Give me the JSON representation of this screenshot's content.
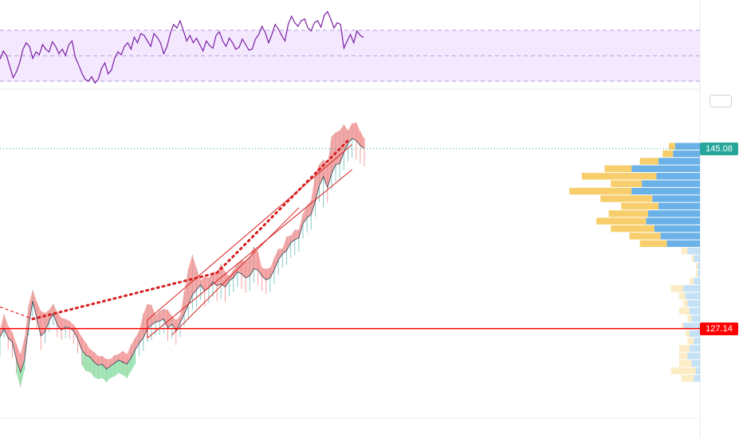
{
  "chart_data": [
    {
      "type": "line",
      "panel": "oscillator",
      "ylim": [
        0,
        100
      ],
      "bands": {
        "upper": 70,
        "middle": 50,
        "lower": 30
      },
      "line_color": "#7b1fa2",
      "band_fill": "#f3e5ff",
      "series": [
        {
          "values": [
            44,
            53,
            48,
            36,
            24,
            30,
            40,
            55,
            62,
            58,
            45,
            52,
            49,
            60,
            55,
            52,
            63,
            58,
            50,
            55,
            48,
            60,
            64,
            46,
            38,
            29,
            22,
            20,
            25,
            18,
            22,
            34,
            40,
            28,
            32,
            45,
            52,
            49,
            58,
            62,
            55,
            68,
            62,
            72,
            70,
            64,
            58,
            72,
            68,
            62,
            50,
            58,
            72,
            82,
            78,
            86,
            75,
            64,
            70,
            62,
            67,
            60,
            53,
            64,
            59,
            56,
            70,
            74,
            64,
            58,
            67,
            62,
            55,
            57,
            66,
            60,
            54,
            55,
            66,
            71,
            80,
            73,
            62,
            71,
            82,
            77,
            70,
            64,
            82,
            91,
            84,
            80,
            86,
            88,
            78,
            75,
            84,
            86,
            79,
            92,
            96,
            88,
            78,
            84,
            82,
            56,
            64,
            71,
            62,
            75,
            70,
            68
          ]
        }
      ]
    },
    {
      "type": "line",
      "panel": "price",
      "ylim": [
        120.2,
        148.0
      ],
      "series": [
        {
          "values": [
            126.3,
            127.1,
            126.2,
            125.8,
            124.1,
            122.8,
            124.0,
            127.4,
            129.9,
            128.2,
            126.4,
            126.8,
            127.9,
            128.6,
            127.5,
            127.0,
            127.3,
            127.2,
            126.9,
            126.1,
            125.0,
            124.5,
            124.3,
            123.8,
            123.5,
            123.6,
            123.1,
            123.4,
            123.7,
            124.0,
            123.8,
            123.6,
            124.2,
            125.0,
            125.7,
            126.2,
            127.1,
            127.5,
            127.8,
            127.9,
            128.1,
            127.2,
            127.6,
            126.9,
            127.7,
            128.6,
            129.5,
            130.5,
            131.0,
            131.5,
            130.9,
            131.2,
            131.8,
            131.4,
            131.6,
            131.3,
            131.9,
            132.2,
            132.8,
            132.6,
            132.2,
            132.4,
            133.1,
            133.0,
            132.4,
            132.0,
            132.2,
            133.0,
            134.0,
            134.6,
            134.9,
            135.7,
            136.0,
            136.2,
            137.6,
            138.2,
            138.5,
            139.8,
            141.4,
            142.3,
            141.2,
            142.6,
            143.5,
            143.6,
            144.7,
            145.6,
            146.1,
            145.9,
            145.4,
            145.1
          ]
        }
      ],
      "highs": [
        127.0,
        128.6,
        127.4,
        126.8,
        125.6,
        124.6,
        126.2,
        129.5,
        131.0,
        129.8,
        128.9,
        128.7,
        129.0,
        129.6,
        128.8,
        128.2,
        128.1,
        127.9,
        127.5,
        127.0,
        126.3,
        125.7,
        125.1,
        124.8,
        124.4,
        124.4,
        124.1,
        124.1,
        124.5,
        124.6,
        124.9,
        124.6,
        125.5,
        126.2,
        126.9,
        128.6,
        129.6,
        129.5,
        128.5,
        128.9,
        129.1,
        129.0,
        128.4,
        128.0,
        128.4,
        130.8,
        133.1,
        134.5,
        133.2,
        132.0,
        132.3,
        132.2,
        132.8,
        132.8,
        133.6,
        132.8,
        132.4,
        133.0,
        133.6,
        133.9,
        133.9,
        134.3,
        135.3,
        134.8,
        133.2,
        133.1,
        133.2,
        134.2,
        135.1,
        135.1,
        136.3,
        136.4,
        137.0,
        137.0,
        138.6,
        139.4,
        139.9,
        142.6,
        143.5,
        144.0,
        143.5,
        146.3,
        146.7,
        146.9,
        147.5,
        146.9,
        147.6,
        147.7,
        146.8,
        146.1
      ],
      "lows": [
        124.4,
        126.2,
        125.1,
        124.2,
        122.7,
        121.3,
        123.0,
        126.4,
        128.3,
        127.0,
        125.0,
        125.7,
        126.8,
        127.4,
        126.3,
        126.0,
        126.2,
        126.1,
        125.6,
        124.7,
        123.5,
        122.9,
        122.8,
        122.3,
        122.1,
        122.2,
        121.8,
        122.2,
        122.4,
        122.7,
        122.5,
        122.2,
        122.9,
        123.6,
        124.4,
        124.9,
        125.8,
        126.0,
        126.5,
        126.5,
        126.7,
        125.9,
        126.2,
        125.5,
        126.3,
        127.4,
        128.1,
        129.0,
        129.3,
        130.0,
        129.4,
        129.7,
        130.3,
        129.9,
        130.1,
        129.8,
        130.4,
        130.8,
        131.3,
        131.1,
        130.7,
        130.9,
        131.7,
        131.5,
        130.9,
        130.6,
        130.8,
        131.6,
        132.5,
        133.2,
        133.5,
        134.2,
        134.5,
        134.8,
        136.1,
        136.7,
        137.0,
        138.3,
        139.8,
        139.2,
        139.7,
        141.0,
        141.8,
        141.9,
        142.9,
        143.8,
        144.2,
        144.0,
        143.6,
        143.3
      ],
      "reference_lines": {
        "last_price": 145.08,
        "level": 127.14
      },
      "annotations": {
        "dotted_peak_line_values": [
          128.1,
          132.7,
          145.9
        ],
        "channel": {
          "upper_from": 128.0,
          "upper_to": 145.5,
          "lower_from": 126.2,
          "lower_to": 143.0
        }
      },
      "volume_profile": {
        "price_min": 121.8,
        "price_max": 145.7,
        "down_color": "#5aa9e6",
        "up_color": "#f6c95b",
        "rows": [
          [
            0.3,
            0.6
          ],
          [
            0.2,
            1.2
          ],
          [
            0.4,
            0.6
          ],
          [
            0.6,
            0.4
          ],
          [
            0.5,
            0.5
          ],
          [
            0.3,
            0.3
          ],
          [
            0.5,
            0.2
          ],
          [
            0.8,
            0.1
          ],
          [
            0.4,
            0.2
          ],
          [
            0.5,
            0.5
          ],
          [
            0.6,
            0.2
          ],
          [
            0.7,
            0.3
          ],
          [
            0.8,
            0.6
          ],
          [
            0.3,
            0.2
          ],
          [
            0.1,
            0.1
          ],
          [
            0.1,
            0.1
          ],
          [
            0.3,
            0.1
          ],
          [
            0.6,
            0.3
          ],
          [
            1.6,
            1.3
          ],
          [
            1.9,
            1.5
          ],
          [
            2.2,
            2.1
          ],
          [
            2.6,
            2.4
          ],
          [
            2.5,
            1.9
          ],
          [
            2.0,
            1.8
          ],
          [
            2.3,
            2.5
          ],
          [
            3.3,
            3.0
          ],
          [
            2.8,
            1.5
          ],
          [
            2.1,
            3.6
          ],
          [
            3.3,
            1.3
          ],
          [
            2.0,
            0.9
          ],
          [
            1.3,
            0.5
          ],
          [
            1.2,
            0.3
          ]
        ]
      }
    }
  ],
  "price_scale": {
    "last_price_label": "145.08",
    "level_label": "127.14",
    "last_price_color": "#26a69a",
    "level_color": "#ff0000"
  }
}
